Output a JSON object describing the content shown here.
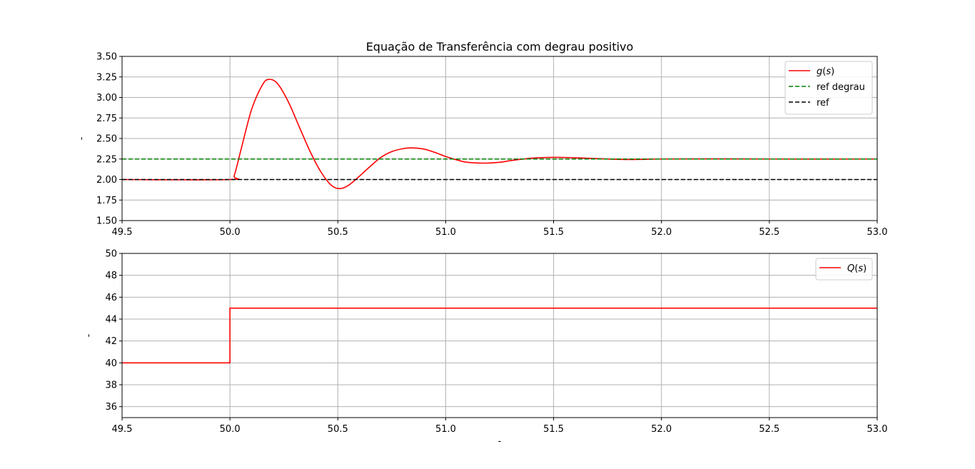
{
  "colors": {
    "gs": "#ff0000",
    "ref_degrau": "#008000",
    "ref": "#000000",
    "qs": "#ff0000",
    "grid": "#b0b0b0",
    "frame": "#000000"
  },
  "chart_data": [
    {
      "type": "line",
      "title": "Equação de Transferência com degrau positivo",
      "xlabel": "",
      "ylabel": "-",
      "xlim": [
        49.5,
        53.0
      ],
      "ylim": [
        1.5,
        3.5
      ],
      "xticks": [
        "49.5",
        "50.0",
        "50.5",
        "51.0",
        "51.5",
        "52.0",
        "52.5",
        "53.0"
      ],
      "yticks": [
        "1.50",
        "1.75",
        "2.00",
        "2.25",
        "2.50",
        "2.75",
        "3.00",
        "3.25",
        "3.50"
      ],
      "grid": true,
      "legend_position": "top-right",
      "legend": [
        "g(s)",
        "ref degrau",
        "ref"
      ],
      "series": [
        {
          "name": "g(s)",
          "style": "solid",
          "x": [
            49.5,
            50.0,
            50.02,
            50.05,
            50.1,
            50.15,
            50.18,
            50.22,
            50.27,
            50.32,
            50.37,
            50.42,
            50.47,
            50.51,
            50.55,
            50.6,
            50.65,
            50.7,
            50.75,
            50.8,
            50.84,
            50.9,
            50.95,
            51.0,
            51.05,
            51.1,
            51.18,
            51.25,
            51.3,
            51.4,
            51.5,
            51.6,
            51.7,
            51.82,
            51.9,
            52.0,
            52.2,
            52.5,
            53.0
          ],
          "y": [
            2.0,
            2.0,
            2.05,
            2.35,
            2.85,
            3.15,
            3.22,
            3.17,
            2.95,
            2.65,
            2.35,
            2.1,
            1.93,
            1.89,
            1.93,
            2.04,
            2.16,
            2.27,
            2.34,
            2.375,
            2.385,
            2.37,
            2.33,
            2.28,
            2.24,
            2.21,
            2.2,
            2.21,
            2.23,
            2.26,
            2.27,
            2.265,
            2.255,
            2.245,
            2.245,
            2.25,
            2.252,
            2.25,
            2.25
          ]
        },
        {
          "name": "ref degrau",
          "style": "dashed",
          "x": [
            49.5,
            53.0
          ],
          "y": [
            2.25,
            2.25
          ]
        },
        {
          "name": "ref",
          "style": "dashed",
          "x": [
            49.5,
            53.0
          ],
          "y": [
            2.0,
            2.0
          ]
        }
      ]
    },
    {
      "type": "line",
      "title": "",
      "xlabel": "-",
      "ylabel": "-",
      "xlim": [
        49.5,
        53.0
      ],
      "ylim": [
        35,
        50
      ],
      "xticks": [
        "49.5",
        "50.0",
        "50.5",
        "51.0",
        "51.5",
        "52.0",
        "52.5",
        "53.0"
      ],
      "yticks": [
        "36",
        "38",
        "40",
        "42",
        "44",
        "46",
        "48",
        "50"
      ],
      "grid": true,
      "legend_position": "top-right",
      "legend": [
        "Q(s)"
      ],
      "series": [
        {
          "name": "Q(s)",
          "style": "solid",
          "x": [
            49.5,
            50.0,
            50.0,
            53.0
          ],
          "y": [
            40,
            40,
            45,
            45
          ]
        }
      ]
    }
  ]
}
